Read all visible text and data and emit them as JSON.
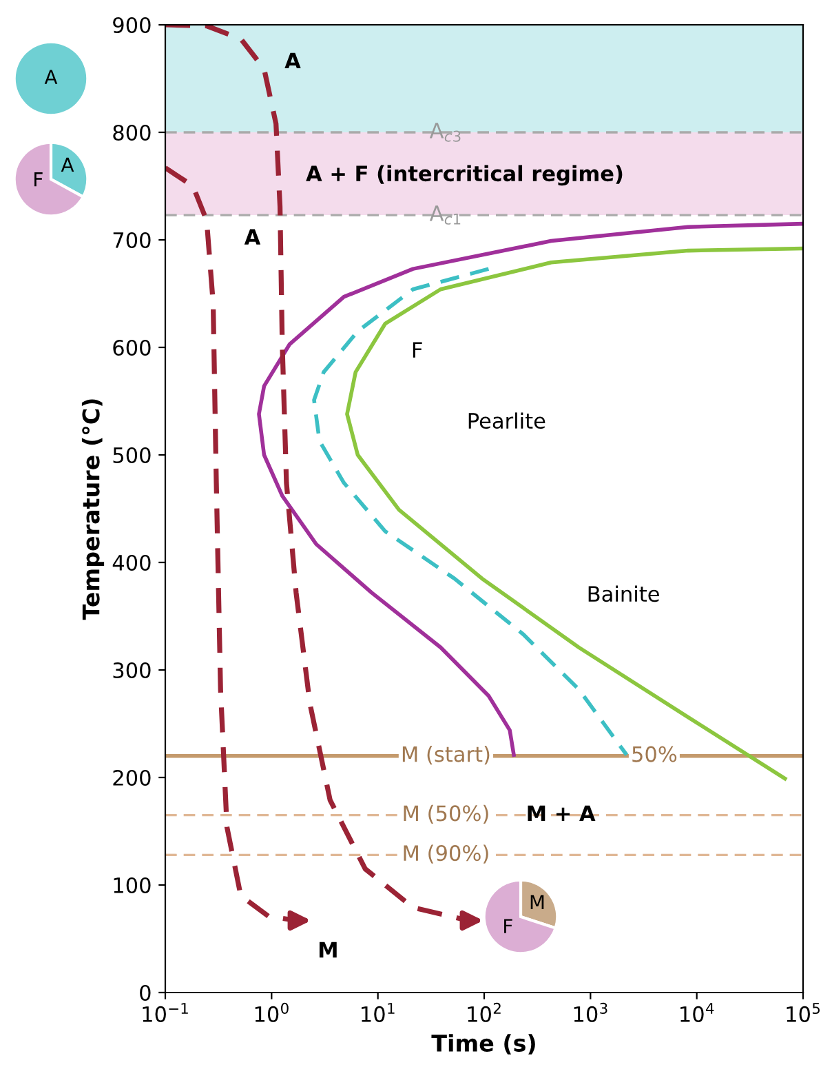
{
  "chart_data": {
    "type": "line",
    "xlabel": "Time (s)",
    "ylabel": "Temperature (°C)",
    "log": "x",
    "xlim": [
      0.1,
      100000
    ],
    "ylim": [
      0,
      900
    ],
    "xticks": [
      {
        "value": 0.1,
        "label": "10$^{−1}$"
      },
      {
        "value": 1,
        "label": "10$^{0}$"
      },
      {
        "value": 10,
        "label": "10$^{1}$"
      },
      {
        "value": 100,
        "label": "10$^{2}$"
      },
      {
        "value": 1000,
        "label": "10$^{3}$"
      },
      {
        "value": 10000,
        "label": "10$^{4}$"
      },
      {
        "value": 100000,
        "label": "10$^{5}$"
      }
    ],
    "yticks": [
      0,
      100,
      200,
      300,
      400,
      500,
      600,
      700,
      800,
      900
    ],
    "grid": false,
    "series": [
      {
        "color": "#a0309a",
        "line_style": "solid",
        "x": [
          100000,
          8300,
          427,
          21.4,
          4.79,
          1.48,
          0.85,
          0.76,
          0.85,
          1.26,
          2.63,
          8.7,
          38.9,
          110,
          174,
          190
        ],
        "values": [
          715,
          712,
          699,
          673,
          647,
          603,
          564,
          538,
          500,
          462,
          417,
          372,
          321,
          276,
          244,
          221
        ]
      },
      {
        "color": "#3cbfc4",
        "line_style": "dashed",
        "x": [
          110,
          21.4,
          6.46,
          3.09,
          2.51,
          2.82,
          4.79,
          11.7,
          52.5,
          234,
          776,
          2190
        ],
        "values": [
          673,
          654,
          615,
          577,
          551,
          513,
          474,
          429,
          385,
          333,
          282,
          221
        ]
      },
      {
        "color": "#8cc63f",
        "line_style": "solid",
        "x": [
          100000,
          8300,
          427,
          38.9,
          11.7,
          6.17,
          5.13,
          6.46,
          15.8,
          95.5,
          776,
          8300,
          67600
        ],
        "values": [
          692,
          690,
          679,
          654,
          622,
          577,
          538,
          500,
          449,
          385,
          321,
          256,
          199
        ]
      },
      {
        "color": "#9b2335",
        "line_style": "dashed",
        "x": [
          0.1,
          0.245,
          0.513,
          0.85,
          1.1,
          1.2,
          1.26,
          1.38,
          1.7,
          2.29,
          3.55,
          7.6,
          21.4,
          70.8
        ],
        "values": [
          900,
          899,
          887,
          859,
          808,
          731,
          603,
          474,
          372,
          269,
          179,
          115,
          79,
          67
        ]
      },
      {
        "color": "#9b2335",
        "line_style": "dashed",
        "x": [
          0.1,
          0.182,
          0.245,
          0.282,
          0.302,
          0.331,
          0.38,
          0.513,
          0.933,
          1.7
        ],
        "values": [
          767,
          750,
          718,
          641,
          474,
          282,
          154,
          90,
          71,
          67
        ]
      }
    ],
    "bands": [
      {
        "axis": "y",
        "from": 800,
        "to": 900,
        "color": "#cdeef0"
      },
      {
        "axis": "y",
        "from": 723,
        "to": 800,
        "color": "#f4dcec"
      }
    ],
    "ref_lines": [
      {
        "axis": "y",
        "value": 800,
        "label": "A$_{c3}$",
        "color": "#aaaaaa",
        "line_style": "dashed"
      },
      {
        "axis": "y",
        "value": 723,
        "label": "A$_{c1}$",
        "color": "#aaaaaa",
        "line_style": "dashed"
      },
      {
        "axis": "y",
        "value": 220,
        "label": "M (start)",
        "color": "#c49a6c",
        "line_style": "solid"
      },
      {
        "axis": "y",
        "value": 165,
        "label": "M (50%)",
        "color": "#e0b896",
        "line_style": "dashed"
      },
      {
        "axis": "y",
        "value": 128,
        "label": "M (90%)",
        "color": "#e0b896",
        "line_style": "dashed"
      }
    ],
    "annotations": [
      {
        "text": "50%",
        "x": 3980,
        "y": 220
      },
      {
        "text": "M + A",
        "x": 525,
        "y": 165
      },
      "A",
      "A + F (intercritical regime)",
      "A",
      "F",
      "Pearlite",
      "Bainite",
      "M",
      "A",
      "A",
      "F",
      "M",
      "F"
    ]
  }
}
